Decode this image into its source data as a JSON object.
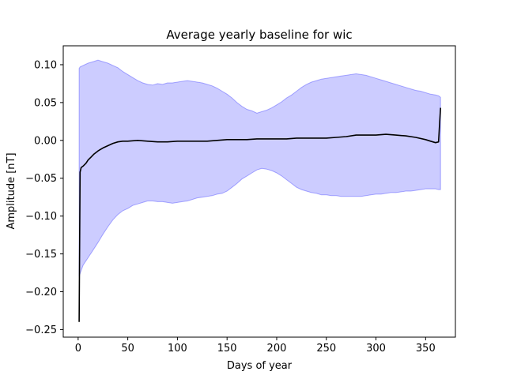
{
  "chart_data": {
    "type": "area",
    "title": "Average yearly baseline for wic",
    "xlabel": "Days of year",
    "ylabel": "Amplitude [nT]",
    "xlim": [
      -15,
      380
    ],
    "ylim": [
      -0.26,
      0.125
    ],
    "xticks": [
      0,
      50,
      100,
      150,
      200,
      250,
      300,
      350
    ],
    "yticks": [
      -0.25,
      -0.2,
      -0.15,
      -0.1,
      -0.05,
      0.0,
      0.05,
      0.1
    ],
    "ytick_labels": [
      "−0.25",
      "−0.20",
      "−0.15",
      "−0.10",
      "−0.05",
      "0.00",
      "0.05",
      "0.10"
    ],
    "grid": false,
    "series": [
      {
        "kind": "band",
        "color": "#0000ff",
        "fill_opacity": 0.2,
        "x": [
          1,
          2,
          5,
          10,
          15,
          20,
          25,
          30,
          35,
          40,
          45,
          50,
          55,
          60,
          65,
          70,
          75,
          80,
          85,
          90,
          95,
          100,
          105,
          110,
          115,
          120,
          125,
          130,
          135,
          140,
          145,
          150,
          155,
          160,
          165,
          170,
          175,
          180,
          185,
          190,
          195,
          200,
          205,
          210,
          215,
          220,
          225,
          230,
          235,
          240,
          245,
          250,
          255,
          260,
          265,
          270,
          275,
          280,
          285,
          290,
          295,
          300,
          305,
          310,
          315,
          320,
          325,
          330,
          335,
          340,
          345,
          350,
          355,
          360,
          363,
          365
        ],
        "upper": [
          0.095,
          0.097,
          0.099,
          0.102,
          0.104,
          0.106,
          0.104,
          0.102,
          0.099,
          0.096,
          0.091,
          0.087,
          0.083,
          0.079,
          0.076,
          0.074,
          0.073,
          0.075,
          0.074,
          0.076,
          0.076,
          0.077,
          0.078,
          0.079,
          0.078,
          0.077,
          0.076,
          0.074,
          0.072,
          0.069,
          0.065,
          0.061,
          0.056,
          0.05,
          0.045,
          0.041,
          0.039,
          0.036,
          0.038,
          0.04,
          0.043,
          0.047,
          0.051,
          0.056,
          0.06,
          0.065,
          0.07,
          0.074,
          0.077,
          0.079,
          0.081,
          0.082,
          0.083,
          0.084,
          0.085,
          0.086,
          0.087,
          0.088,
          0.087,
          0.086,
          0.084,
          0.082,
          0.08,
          0.078,
          0.076,
          0.074,
          0.072,
          0.07,
          0.068,
          0.066,
          0.065,
          0.063,
          0.061,
          0.06,
          0.059,
          0.057
        ],
        "lower": [
          -0.18,
          -0.176,
          -0.165,
          -0.155,
          -0.145,
          -0.135,
          -0.124,
          -0.114,
          -0.105,
          -0.098,
          -0.093,
          -0.09,
          -0.086,
          -0.084,
          -0.082,
          -0.08,
          -0.08,
          -0.081,
          -0.081,
          -0.082,
          -0.083,
          -0.082,
          -0.081,
          -0.08,
          -0.078,
          -0.076,
          -0.075,
          -0.074,
          -0.073,
          -0.071,
          -0.07,
          -0.067,
          -0.062,
          -0.057,
          -0.051,
          -0.047,
          -0.043,
          -0.039,
          -0.037,
          -0.038,
          -0.04,
          -0.043,
          -0.047,
          -0.052,
          -0.057,
          -0.062,
          -0.065,
          -0.067,
          -0.069,
          -0.07,
          -0.072,
          -0.072,
          -0.073,
          -0.073,
          -0.074,
          -0.074,
          -0.074,
          -0.074,
          -0.074,
          -0.073,
          -0.072,
          -0.071,
          -0.071,
          -0.07,
          -0.069,
          -0.069,
          -0.068,
          -0.067,
          -0.067,
          -0.066,
          -0.065,
          -0.064,
          -0.064,
          -0.064,
          -0.065,
          -0.065
        ]
      },
      {
        "kind": "line",
        "color": "#000000",
        "x": [
          1,
          2,
          3,
          5,
          8,
          10,
          13,
          16,
          20,
          25,
          30,
          35,
          40,
          45,
          50,
          60,
          70,
          80,
          90,
          100,
          110,
          120,
          130,
          140,
          150,
          160,
          170,
          180,
          190,
          200,
          210,
          220,
          230,
          240,
          250,
          260,
          270,
          280,
          290,
          300,
          310,
          320,
          330,
          340,
          350,
          355,
          360,
          363,
          364,
          365
        ],
        "values": [
          -0.24,
          -0.042,
          -0.036,
          -0.034,
          -0.03,
          -0.026,
          -0.022,
          -0.018,
          -0.014,
          -0.01,
          -0.007,
          -0.004,
          -0.002,
          -0.001,
          -0.001,
          0.0,
          -0.001,
          -0.002,
          -0.002,
          -0.001,
          -0.001,
          -0.001,
          -0.001,
          0.0,
          0.001,
          0.001,
          0.001,
          0.002,
          0.002,
          0.002,
          0.002,
          0.003,
          0.003,
          0.003,
          0.003,
          0.004,
          0.005,
          0.007,
          0.007,
          0.007,
          0.008,
          0.007,
          0.006,
          0.004,
          0.001,
          -0.001,
          -0.003,
          -0.002,
          0.02,
          0.043
        ]
      }
    ]
  }
}
